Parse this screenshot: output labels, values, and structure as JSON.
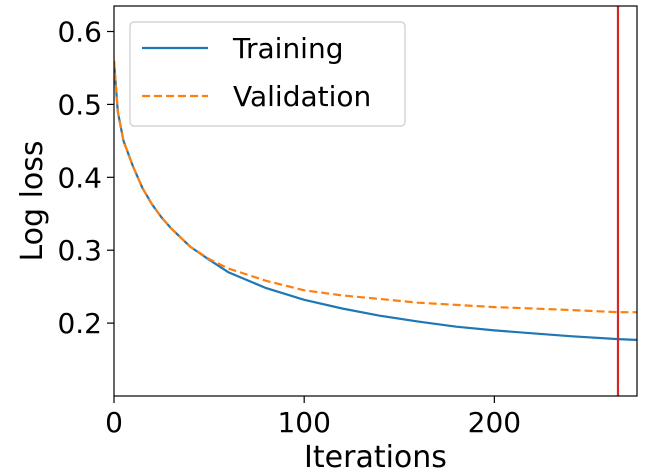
{
  "chart_data": {
    "type": "line",
    "title": "",
    "xlabel": "Iterations",
    "ylabel": "Log loss",
    "xlim": [
      0,
      275
    ],
    "ylim": [
      0.1,
      0.635
    ],
    "xticks": [
      0,
      100,
      200
    ],
    "xtick_labels": [
      "0",
      "100",
      "200"
    ],
    "yticks": [
      0.2,
      0.3,
      0.4,
      0.5,
      0.6
    ],
    "ytick_labels": [
      "0.2",
      "0.3",
      "0.4",
      "0.5",
      "0.6"
    ],
    "grid": false,
    "legend_position": "top-left",
    "vline": {
      "x": 265,
      "color": "#d62728"
    },
    "series": [
      {
        "name": "Training",
        "color": "#1f77b4",
        "style": "solid",
        "x": [
          0,
          2,
          5,
          10,
          15,
          20,
          25,
          30,
          40,
          50,
          60,
          80,
          100,
          120,
          140,
          160,
          180,
          200,
          220,
          240,
          265,
          275
        ],
        "y": [
          0.56,
          0.49,
          0.45,
          0.415,
          0.385,
          0.363,
          0.345,
          0.33,
          0.305,
          0.287,
          0.27,
          0.248,
          0.232,
          0.22,
          0.21,
          0.202,
          0.195,
          0.19,
          0.186,
          0.182,
          0.178,
          0.177
        ]
      },
      {
        "name": "Validation",
        "color": "#ff7f0e",
        "style": "dashed",
        "x": [
          0,
          2,
          5,
          10,
          15,
          20,
          25,
          30,
          40,
          50,
          60,
          80,
          100,
          120,
          140,
          160,
          180,
          200,
          220,
          240,
          265,
          275
        ],
        "y": [
          0.56,
          0.49,
          0.45,
          0.415,
          0.385,
          0.363,
          0.345,
          0.33,
          0.305,
          0.288,
          0.275,
          0.258,
          0.245,
          0.238,
          0.233,
          0.228,
          0.225,
          0.222,
          0.22,
          0.218,
          0.215,
          0.215
        ]
      }
    ]
  }
}
